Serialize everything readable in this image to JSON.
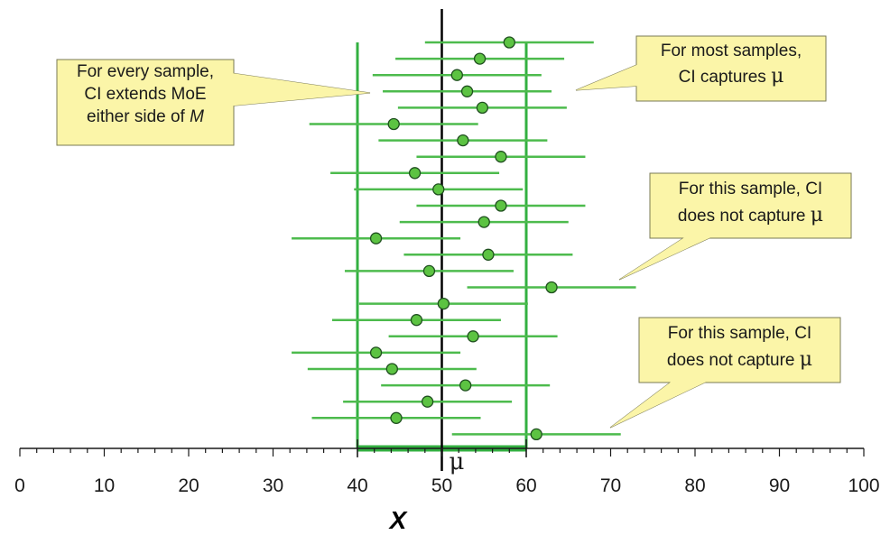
{
  "chart_data": {
    "type": "scatter",
    "title": "",
    "xlabel": "X",
    "ylabel": "",
    "xlim": [
      0,
      100
    ],
    "x_ticks": [
      "0",
      "10",
      "20",
      "30",
      "40",
      "50",
      "60",
      "70",
      "80",
      "90",
      "100"
    ],
    "mu": 50,
    "mu_label": "μ",
    "moe": 10,
    "reference_lines": [
      40,
      60
    ],
    "grid": false,
    "samples": [
      {
        "mean": 58.0,
        "lower": 48.0,
        "upper": 68.0
      },
      {
        "mean": 54.5,
        "lower": 44.5,
        "upper": 64.5
      },
      {
        "mean": 51.8,
        "lower": 41.8,
        "upper": 61.8
      },
      {
        "mean": 53.0,
        "lower": 43.0,
        "upper": 63.0
      },
      {
        "mean": 54.8,
        "lower": 44.8,
        "upper": 64.8
      },
      {
        "mean": 44.3,
        "lower": 34.3,
        "upper": 54.3
      },
      {
        "mean": 52.5,
        "lower": 42.5,
        "upper": 62.5
      },
      {
        "mean": 57.0,
        "lower": 47.0,
        "upper": 67.0
      },
      {
        "mean": 46.8,
        "lower": 36.8,
        "upper": 56.8
      },
      {
        "mean": 49.6,
        "lower": 39.6,
        "upper": 59.6
      },
      {
        "mean": 57.0,
        "lower": 47.0,
        "upper": 67.0
      },
      {
        "mean": 55.0,
        "lower": 45.0,
        "upper": 65.0
      },
      {
        "mean": 42.2,
        "lower": 32.2,
        "upper": 52.2
      },
      {
        "mean": 55.5,
        "lower": 45.5,
        "upper": 65.5
      },
      {
        "mean": 48.5,
        "lower": 38.5,
        "upper": 58.5
      },
      {
        "mean": 63.0,
        "lower": 53.0,
        "upper": 73.0
      },
      {
        "mean": 50.2,
        "lower": 40.2,
        "upper": 60.2
      },
      {
        "mean": 47.0,
        "lower": 37.0,
        "upper": 57.0
      },
      {
        "mean": 53.7,
        "lower": 43.7,
        "upper": 63.7
      },
      {
        "mean": 42.2,
        "lower": 32.2,
        "upper": 52.2
      },
      {
        "mean": 44.1,
        "lower": 34.1,
        "upper": 54.1
      },
      {
        "mean": 52.8,
        "lower": 42.8,
        "upper": 62.8
      },
      {
        "mean": 48.3,
        "lower": 38.3,
        "upper": 58.3
      },
      {
        "mean": 44.6,
        "lower": 34.6,
        "upper": 54.6
      },
      {
        "mean": 61.2,
        "lower": 51.2,
        "upper": 71.2
      }
    ],
    "annotations": [
      {
        "id": "every-sample",
        "lines": [
          "For every sample,",
          "CI extends MoE",
          "either side of "
        ],
        "italic_tail": "M"
      },
      {
        "id": "most-samples",
        "lines": [
          "For most samples,",
          "CI captures "
        ],
        "symbol_tail": "μ"
      },
      {
        "id": "miss-1",
        "lines": [
          "For this sample, CI",
          "does not capture "
        ],
        "symbol_tail": "μ"
      },
      {
        "id": "miss-2",
        "lines": [
          "For this sample, CI",
          "does not capture "
        ],
        "symbol_tail": "μ"
      }
    ],
    "colors": {
      "ci_line": "#4dbb4d",
      "ref_line": "#33b041",
      "dot_fill": "#5cc342",
      "dot_stroke": "#1f4f1f",
      "callout_fill": "#fbf5a8",
      "callout_stroke": "#7a7a55",
      "mu_line": "#000000",
      "axis": "#1a1a1a"
    }
  }
}
